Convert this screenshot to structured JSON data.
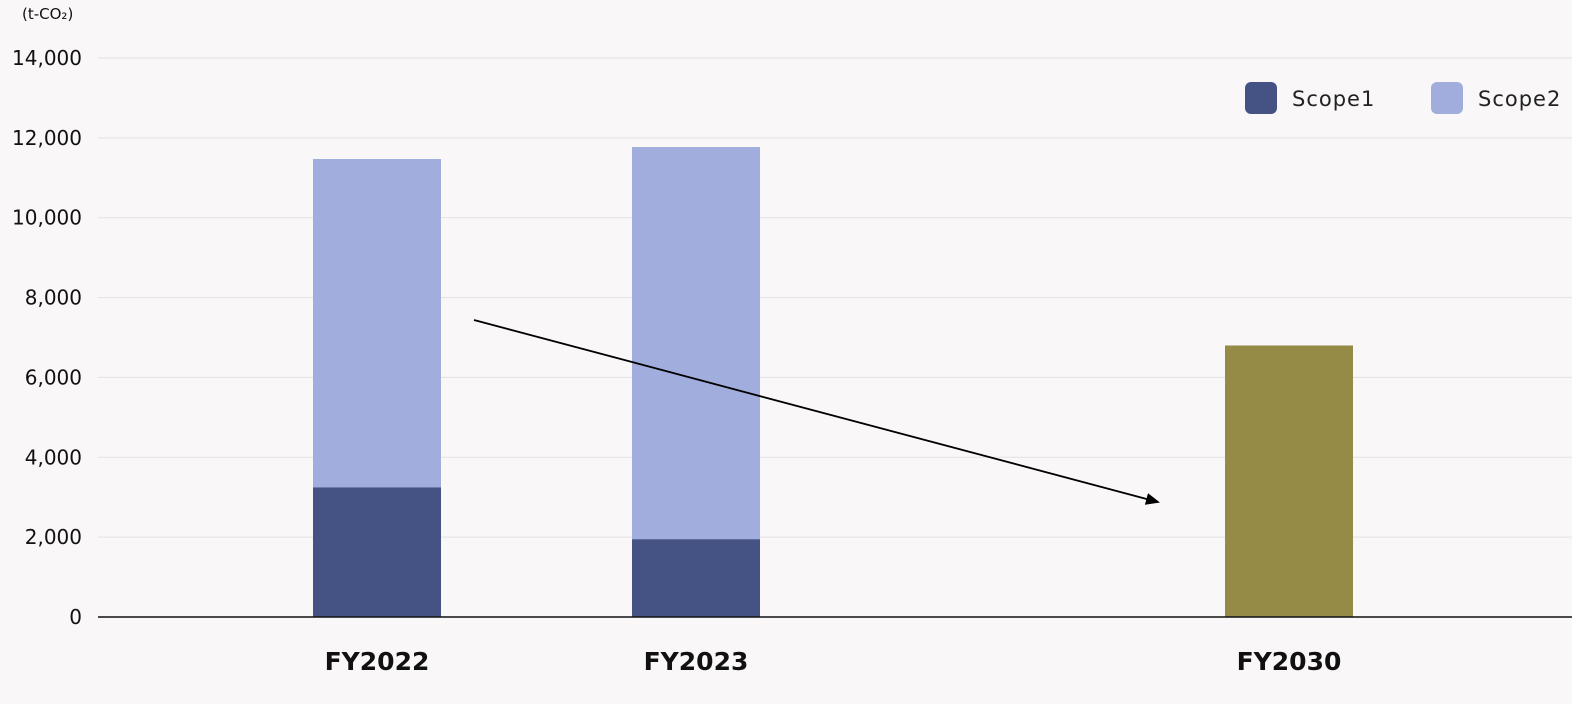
{
  "chart_data": {
    "type": "bar",
    "stacked": true,
    "title": "",
    "xlabel": "",
    "ylabel": "(t-CO₂)",
    "ylim": [
      0,
      14000
    ],
    "yticks": [
      0,
      2000,
      4000,
      6000,
      8000,
      10000,
      12000,
      14000
    ],
    "ytick_labels": [
      "0",
      "2,000",
      "4,000",
      "6,000",
      "8,000",
      "10,000",
      "12,000",
      "14,000"
    ],
    "grid": true,
    "legend_position": "top-right",
    "categories": [
      "FY2022",
      "FY2023",
      "FY2030"
    ],
    "series": [
      {
        "name": "Scope1",
        "color": "#445284",
        "values": [
          3250,
          1950,
          null
        ]
      },
      {
        "name": "Scope2",
        "color": "#a1aedd",
        "values": [
          8220,
          9820,
          null
        ]
      },
      {
        "name": "",
        "color": "#958a46",
        "values": [
          null,
          null,
          6800
        ]
      }
    ],
    "annotation": {
      "type": "arrow",
      "description_icon": "downward-trend-arrow-icon"
    }
  }
}
